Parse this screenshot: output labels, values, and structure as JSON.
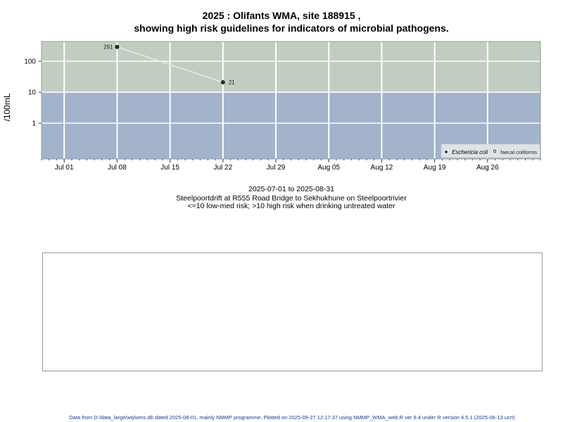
{
  "title_line1": "2025 : Olifants WMA, site 188915 ,",
  "title_line2": "showing high risk guidelines for indicators of microbial pathogens.",
  "subtitle": {
    "date_range": "2025-07-01 to 2025-08-31",
    "site_description": "Steelpoortdrift at R555 Road Bridge to Sekhukhune on Steelpoortrivier",
    "risk_note": "<=10 low-med risk; >10 high risk when drinking untreated water"
  },
  "footer": "Data from D:/data_large/wq/wms.db dated 2025-08-01, mainly NMMP programme. Plotted on 2025-09-27 12:17:37 using NMMP_WMA_web.R ver 9.4 under R version 4.5.1 (2025-06-13 ucrt)",
  "colors": {
    "high_risk_zone": "#c2cdc1",
    "low_risk_zone": "#a2b3cb",
    "line": "#e4e4e4",
    "point": "#222222",
    "grid": "#ffffff"
  },
  "chart_data": {
    "type": "line",
    "ylabel": "/100mL",
    "y_scale": "log",
    "ylim": [
      0.07,
      436
    ],
    "y_ticks": [
      {
        "value": 1,
        "label": "1"
      },
      {
        "value": 10,
        "label": "10"
      },
      {
        "value": 100,
        "label": "100"
      }
    ],
    "xlim": [
      "2025-06-28",
      "2025-09-02"
    ],
    "x_ticks": [
      {
        "date": "2025-07-01",
        "label": "Jul 01"
      },
      {
        "date": "2025-07-08",
        "label": "Jul 08"
      },
      {
        "date": "2025-07-15",
        "label": "Jul 15"
      },
      {
        "date": "2025-07-22",
        "label": "Jul 22"
      },
      {
        "date": "2025-07-29",
        "label": "Jul 29"
      },
      {
        "date": "2025-08-05",
        "label": "Aug 05"
      },
      {
        "date": "2025-08-12",
        "label": "Aug 12"
      },
      {
        "date": "2025-08-19",
        "label": "Aug 19"
      },
      {
        "date": "2025-08-26",
        "label": "Aug 26"
      }
    ],
    "threshold": 10,
    "grid": true,
    "legend_position": "bottom-right",
    "series": [
      {
        "name": "Eschericia coli",
        "marker": "filled",
        "points": [
          {
            "date": "2025-07-08",
            "value": 291,
            "label": "291"
          },
          {
            "date": "2025-07-22",
            "value": 21,
            "label": "21"
          }
        ]
      },
      {
        "name": "faecal coliforms",
        "marker": "open",
        "points": []
      }
    ]
  }
}
